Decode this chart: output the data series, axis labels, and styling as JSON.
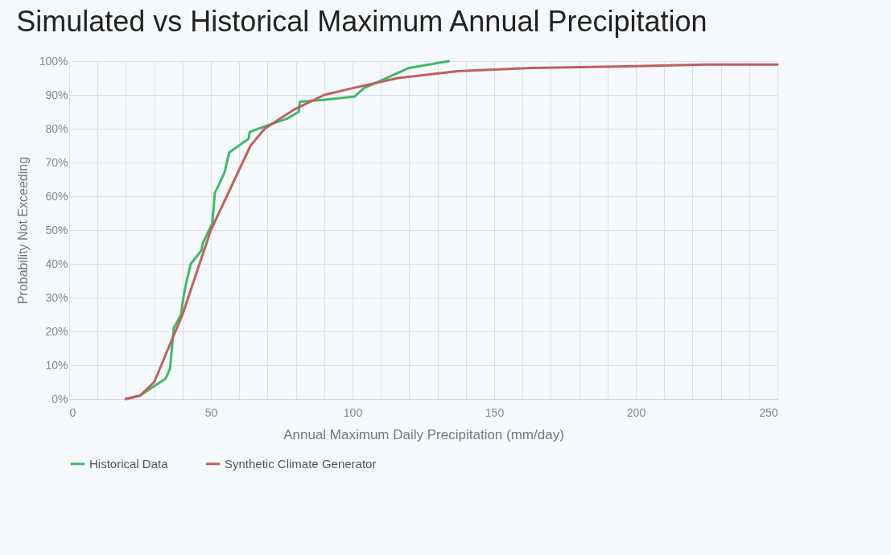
{
  "chart_data": {
    "type": "line",
    "title": "Simulated vs Historical Maximum Annual Precipitation",
    "xlabel": "Annual Maximum Daily Precipitation (mm/day)",
    "ylabel": "Probability Not Exceeding",
    "xlim": [
      0,
      250
    ],
    "xticks": [
      0,
      {
        "value": 10,
        "label": null
      },
      {
        "value": 20,
        "label": null
      },
      {
        "value": 30,
        "label": null
      },
      {
        "value": 40,
        "label": null
      },
      50,
      {
        "value": 60,
        "label": null
      },
      {
        "value": 70,
        "label": null
      },
      {
        "value": 80,
        "label": null
      },
      {
        "value": 90,
        "label": null
      },
      100,
      {
        "value": 110,
        "label": null
      },
      {
        "value": 120,
        "label": null
      },
      {
        "value": 130,
        "label": null
      },
      {
        "value": 140,
        "label": null
      },
      150,
      {
        "value": 160,
        "label": null
      },
      {
        "value": 170,
        "label": null
      },
      {
        "value": 180,
        "label": null
      },
      {
        "value": 190,
        "label": null
      },
      200,
      {
        "value": 210,
        "label": null
      },
      {
        "value": 220,
        "label": null
      },
      {
        "value": 230,
        "label": null
      },
      {
        "value": 240,
        "label": null
      },
      250
    ],
    "ylim": [
      0,
      100
    ],
    "yticks": [
      {
        "value": 0,
        "label": "0%"
      },
      {
        "value": 10,
        "label": "10%"
      },
      {
        "value": 20,
        "label": "20%"
      },
      {
        "value": 30,
        "label": "30%"
      },
      {
        "value": 40,
        "label": "40%"
      },
      {
        "value": 50,
        "label": "50%"
      },
      {
        "value": 60,
        "label": "60%"
      },
      {
        "value": 70,
        "label": "70%"
      },
      {
        "value": 80,
        "label": "80%"
      },
      {
        "value": 90,
        "label": "90%"
      },
      {
        "value": 100,
        "label": "100%"
      }
    ],
    "grid": true,
    "legend": "bottom",
    "marker": "none",
    "line_style": "solid",
    "series": [
      {
        "name": "Historical Data",
        "color": "#3dbb6b",
        "x": [
          20,
          25,
          34,
          35.6,
          36.9,
          39.5,
          40.3,
          41.2,
          42.9,
          46.7,
          47.1,
          50.5,
          51.4,
          52.6,
          54.8,
          56.5,
          63.3,
          63.7,
          70,
          77,
          81,
          81.4,
          89.6,
          100.7,
          104,
          120,
          134
        ],
        "values": [
          0,
          1,
          6,
          9,
          21,
          25,
          30,
          34,
          40,
          44,
          46,
          52,
          61,
          63,
          67,
          73,
          77,
          79,
          81,
          83,
          85,
          88,
          88.5,
          89.5,
          92,
          98,
          100
        ]
      },
      {
        "name": "Synthetic Climate Generator",
        "color": "#c0605e",
        "x": [
          20,
          25,
          30,
          40,
          50,
          64,
          69,
          79,
          90,
          100,
          116,
          137,
          163,
          200,
          225,
          250
        ],
        "values": [
          0,
          1,
          5,
          25,
          50,
          75,
          80,
          85.5,
          90,
          92,
          95,
          97,
          98,
          98.5,
          99,
          99
        ]
      }
    ]
  }
}
